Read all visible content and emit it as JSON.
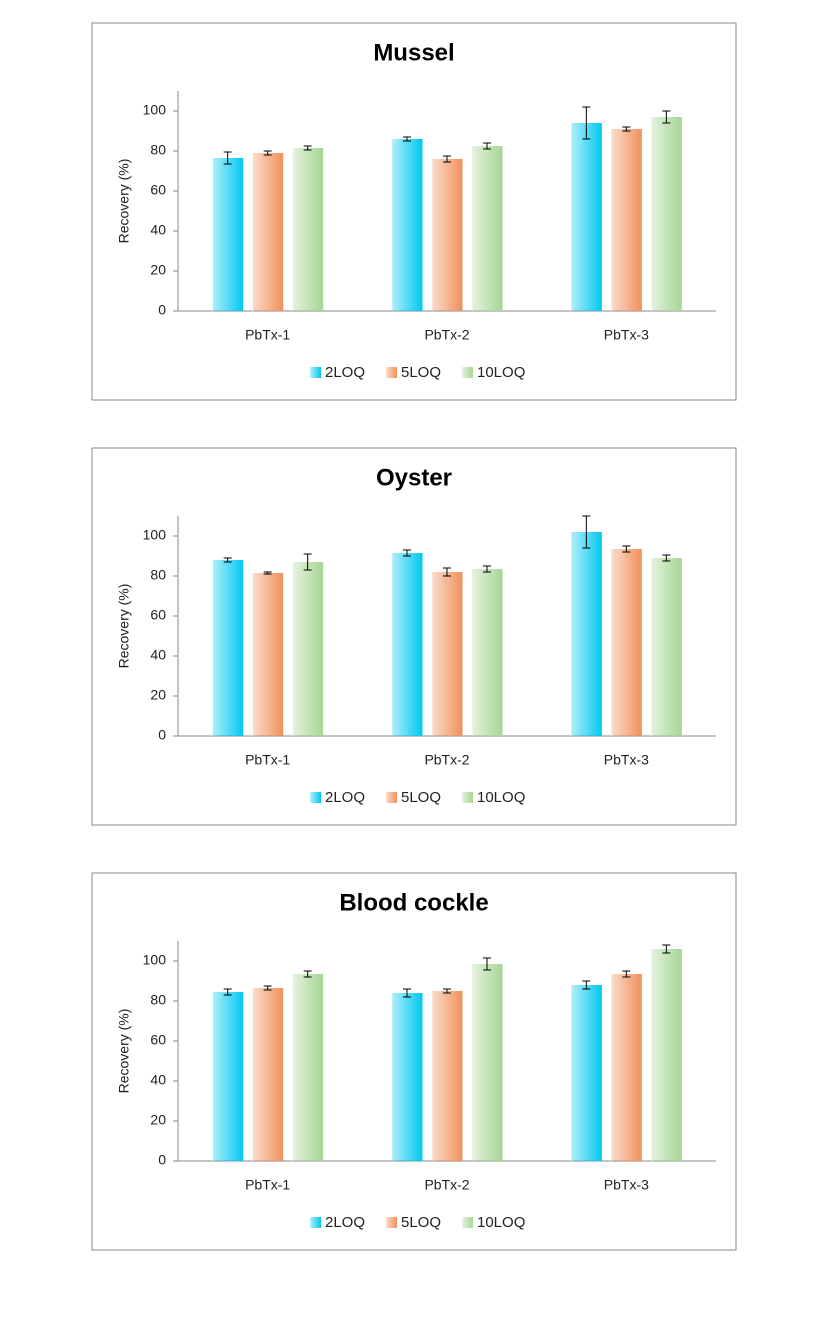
{
  "chart_data": [
    {
      "type": "bar",
      "title": "Mussel",
      "y_label": "Recovery (%)",
      "categories": [
        "PbTx-1",
        "PbTx-2",
        "PbTx-3"
      ],
      "series": [
        {
          "name": "2LOQ",
          "color": "#00c8f0",
          "values": [
            76.5,
            86,
            94
          ],
          "errors": [
            3,
            1,
            8
          ]
        },
        {
          "name": "5LOQ",
          "color": "#f0905a",
          "values": [
            79,
            76,
            91
          ],
          "errors": [
            1,
            1.5,
            1
          ]
        },
        {
          "name": "10LOQ",
          "color": "#a6d694",
          "values": [
            81.5,
            82.5,
            97
          ],
          "errors": [
            1,
            1.5,
            3
          ]
        }
      ],
      "ylim": [
        0,
        110
      ],
      "yticks": [
        0,
        20,
        40,
        60,
        80,
        100
      ],
      "legend": "bottom"
    },
    {
      "type": "bar",
      "title": "Oyster",
      "y_label": "Recovery (%)",
      "categories": [
        "PbTx-1",
        "PbTx-2",
        "PbTx-3"
      ],
      "series": [
        {
          "name": "2LOQ",
          "color": "#00c8f0",
          "values": [
            88,
            91.5,
            102
          ],
          "errors": [
            1,
            1.5,
            8
          ]
        },
        {
          "name": "5LOQ",
          "color": "#f0905a",
          "values": [
            81.5,
            82,
            93.5
          ],
          "errors": [
            0.5,
            2,
            1.5
          ]
        },
        {
          "name": "10LOQ",
          "color": "#a6d694",
          "values": [
            87,
            83.5,
            89
          ],
          "errors": [
            4,
            1.5,
            1.5
          ]
        }
      ],
      "ylim": [
        0,
        110
      ],
      "yticks": [
        0,
        20,
        40,
        60,
        80,
        100
      ],
      "legend": "bottom"
    },
    {
      "type": "bar",
      "title": "Blood cockle",
      "y_label": "Recovery (%)",
      "categories": [
        "PbTx-1",
        "PbTx-2",
        "PbTx-3"
      ],
      "series": [
        {
          "name": "2LOQ",
          "color": "#00c8f0",
          "values": [
            84.5,
            84,
            88
          ],
          "errors": [
            1.5,
            2,
            2
          ]
        },
        {
          "name": "5LOQ",
          "color": "#f0905a",
          "values": [
            86.5,
            85,
            93.5
          ],
          "errors": [
            1,
            1,
            1.5
          ]
        },
        {
          "name": "10LOQ",
          "color": "#a6d694",
          "values": [
            93.5,
            98.5,
            106
          ],
          "errors": [
            1.5,
            3,
            2
          ]
        }
      ],
      "ylim": [
        0,
        110
      ],
      "yticks": [
        0,
        20,
        40,
        60,
        80,
        100
      ],
      "legend": "bottom"
    }
  ]
}
